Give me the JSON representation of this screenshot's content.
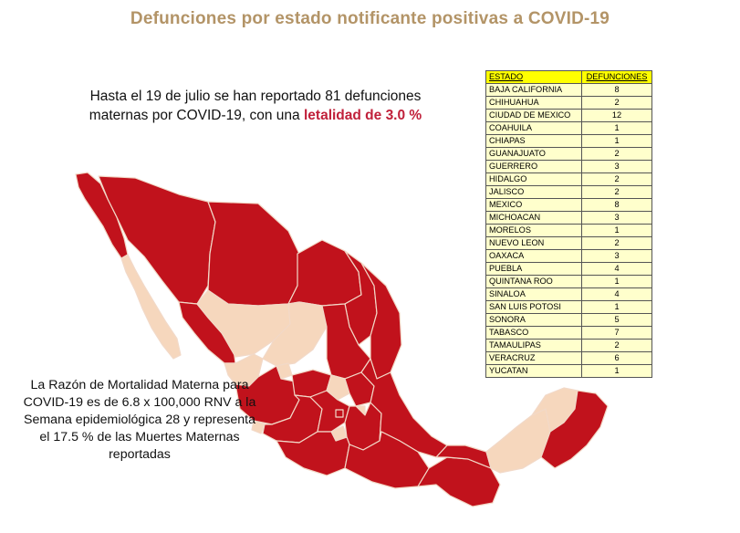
{
  "title": "Defunciones por estado notificante positivas a COVID-19",
  "intro": {
    "line1": "Hasta el 19 de julio se han reportado 81 defunciones",
    "line2_prefix": "maternas por COVID-19, con una ",
    "line2_highlight": "letalidad de 3.0 %"
  },
  "rmm": {
    "line1": "La Razón de Mortalidad Materna para",
    "line2": "COVID-19 es de 6.8 x 100,000 RNV  a la",
    "line3": "Semana epidemiológica 28 y representa",
    "line4": "el 17.5 % de las Muertes Maternas",
    "line5": "reportadas"
  },
  "table": {
    "col_state": "ESTADO",
    "col_deaths": "DEFUNCIONES",
    "rows": [
      {
        "state": "BAJA CALIFORNIA",
        "deaths": "8"
      },
      {
        "state": "CHIHUAHUA",
        "deaths": "2"
      },
      {
        "state": "CIUDAD DE MEXICO",
        "deaths": "12"
      },
      {
        "state": "COAHUILA",
        "deaths": "1"
      },
      {
        "state": "CHIAPAS",
        "deaths": "1"
      },
      {
        "state": "GUANAJUATO",
        "deaths": "2"
      },
      {
        "state": "GUERRERO",
        "deaths": "3"
      },
      {
        "state": "HIDALGO",
        "deaths": "2"
      },
      {
        "state": "JALISCO",
        "deaths": "2"
      },
      {
        "state": "MEXICO",
        "deaths": "8"
      },
      {
        "state": "MICHOACAN",
        "deaths": "3"
      },
      {
        "state": "MORELOS",
        "deaths": "1"
      },
      {
        "state": "NUEVO LEON",
        "deaths": "2"
      },
      {
        "state": "OAXACA",
        "deaths": "3"
      },
      {
        "state": "PUEBLA",
        "deaths": "4"
      },
      {
        "state": "QUINTANA ROO",
        "deaths": "1"
      },
      {
        "state": "SINALOA",
        "deaths": "4"
      },
      {
        "state": "SAN LUIS POTOSI",
        "deaths": "1"
      },
      {
        "state": "SONORA",
        "deaths": "5"
      },
      {
        "state": "TABASCO",
        "deaths": "7"
      },
      {
        "state": "TAMAULIPAS",
        "deaths": "2"
      },
      {
        "state": "VERACRUZ",
        "deaths": "6"
      },
      {
        "state": "YUCATAN",
        "deaths": "1"
      }
    ]
  },
  "colors": {
    "title": "#b39467",
    "highlight": "#c0203a",
    "reported_state": "#c1121c",
    "no_report_state": "#f6d7bd",
    "border": "#f2d9c8",
    "table_bg": "#ffffcc",
    "table_header": "#ffff00"
  }
}
